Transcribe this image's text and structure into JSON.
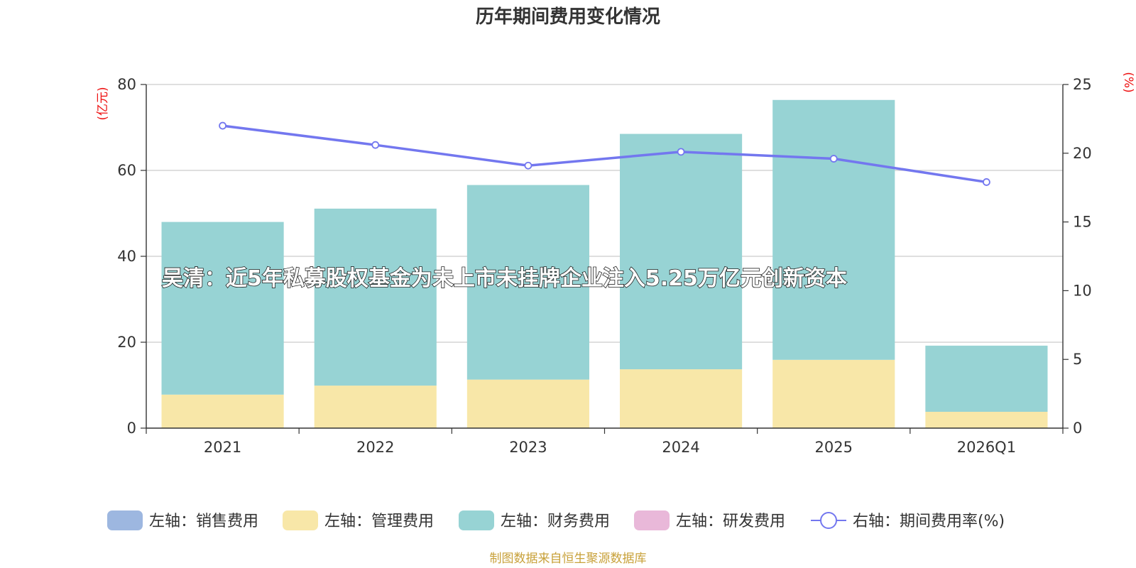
{
  "chart_data": {
    "type": "bar",
    "title": "历年期间费用变化情况",
    "categories": [
      "2021",
      "2022",
      "2023",
      "2024",
      "2025",
      "2026Q1"
    ],
    "y_left": {
      "unit": "(亿元)",
      "range": [
        0,
        80
      ],
      "ticks": [
        "0",
        "20",
        "40",
        "60",
        "80"
      ]
    },
    "y_right": {
      "unit": "(%)",
      "range": [
        0,
        25
      ],
      "ticks": [
        "0",
        "5",
        "10",
        "15",
        "20",
        "25"
      ]
    },
    "series": [
      {
        "name": "左轴：销售费用",
        "kind": "bar",
        "color": "#9db7e0",
        "values": [
          0,
          0,
          0,
          0,
          0,
          0
        ]
      },
      {
        "name": "左轴：管理费用",
        "kind": "bar",
        "color": "#f8e7a8",
        "values": [
          7.8,
          9.9,
          11.3,
          13.7,
          15.9,
          3.8
        ]
      },
      {
        "name": "左轴：财务费用",
        "kind": "bar",
        "color": "#97d3d4",
        "values": [
          40.2,
          41.2,
          45.3,
          54.8,
          60.5,
          15.4
        ]
      },
      {
        "name": "左轴：研发费用",
        "kind": "bar",
        "color": "#e9b8d9",
        "values": [
          0,
          0,
          0,
          0,
          0,
          0
        ]
      },
      {
        "name": "右轴：期间费用率(%)",
        "kind": "line",
        "axis": "right",
        "color": "#7377ef",
        "values": [
          22.0,
          20.6,
          19.1,
          20.1,
          19.6,
          17.9
        ]
      }
    ],
    "grid": true,
    "legend_position": "bottom"
  },
  "overlay_text": "吴清：近5年私募股权基金为未上市未挂牌企业注入5.25万亿元创新资本",
  "source_text": "制图数据来自恒生聚源数据库"
}
